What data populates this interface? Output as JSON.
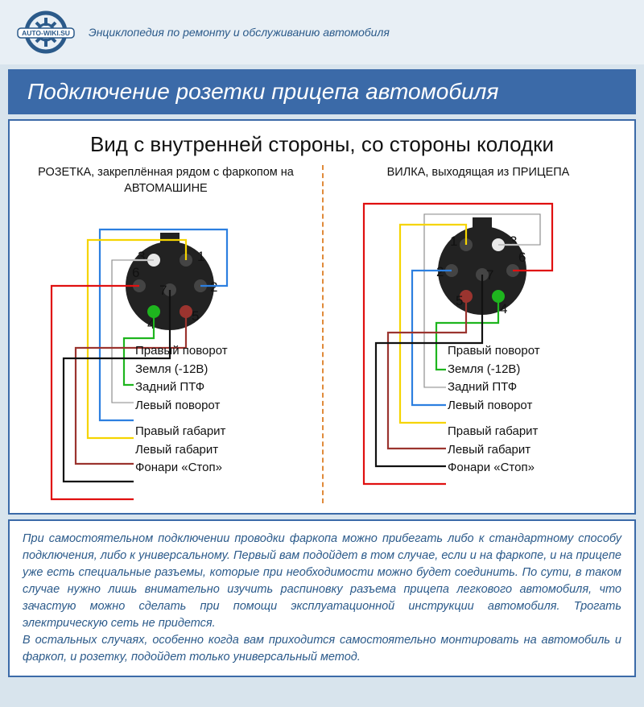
{
  "site": {
    "name": "AUTO-WIKI.SU",
    "tagline": "Энциклопедия по ремонту и обслуживанию автомобиля"
  },
  "banner_title": "Подключение розетки прицепа автомобиля",
  "diagram": {
    "title": "Вид с внутренней стороны, со стороны колодки",
    "left_label": "РОЗЕТКА, закреплённая рядом с фаркопом на АВТОМАШИНЕ",
    "right_label": "ВИЛКА, выходящая из ПРИЦЕПА",
    "colors": {
      "pin1_turn_left": "#f5d400",
      "pin2_rear_fog": "#2c7fe0",
      "pin3_ground": "#e8e8e8",
      "pin4_turn_right": "#1eb51e",
      "pin5_side_right": "#9b342f",
      "pin6_stop": "#e01010",
      "pin7_side_left": "#111111",
      "connector_body": "#222222",
      "num_text": "#111111",
      "divider": "#e08a3a"
    },
    "pins": [
      {
        "n": "1",
        "label": "Левый поворот"
      },
      {
        "n": "2",
        "label": "Задний ПТФ"
      },
      {
        "n": "3",
        "label": "Земля (-12В)"
      },
      {
        "n": "4",
        "label": "Правый поворот"
      },
      {
        "n": "5",
        "label": "Правый габарит"
      },
      {
        "n": "6",
        "label": "Фонари «Стоп»"
      },
      {
        "n": "7",
        "label": "Левый габарит"
      }
    ],
    "label_order": [
      "Правый поворот",
      "Земля (-12В)",
      "Задний ПТФ",
      "Левый поворот",
      "Правый габарит",
      "Левый габарит",
      "Фонари «Стоп»"
    ]
  },
  "footer_text": "При самостоятельном подключении проводки фаркопа можно прибегать либо к стандартному способу подключения, либо к универсальному. Первый вам подойдет в том случае, если и на фаркопе, и на прицепе уже есть специальные разъемы, которые при необходимости можно будет соединить. По сути, в таком случае нужно лишь внимательно изучить распиновку разъема прицепа легкового автомобиля, что зачастую можно сделать при помощи эксплуатационной инструкции автомобиля. Трогать электрическую сеть не придется.\nВ остальных случаях, особенно когда вам приходится самостоятельно монтировать на автомобиль и фаркоп, и розетку, подойдет только универсальный метод."
}
